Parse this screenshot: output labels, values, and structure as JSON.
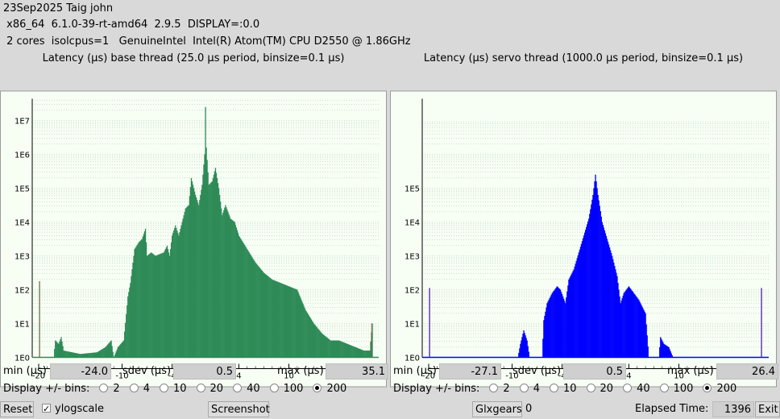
{
  "header": {
    "line1": "23Sep2025 Taig john",
    "line2": " x86_64  6.1.0-39-rt-amd64  2.9.5  DISPLAY=:0.0",
    "line3": " 2 cores  isolcpus=1   GenuineIntel  Intel(R) Atom(TM) CPU D2550 @ 1.86GHz"
  },
  "base": {
    "title": "Latency (µs) base thread (25.0 µs period, binsize=0.1 µs)",
    "min_label": "min (µs)",
    "min": "-24.0",
    "sdev_label": "sdev (µs)",
    "sdev": "0.5",
    "max_label": "max (µs)",
    "max": "35.1",
    "bins_label": "Display +/- bins:",
    "bins": [
      "2",
      "4",
      "10",
      "20",
      "40",
      "100",
      "200"
    ],
    "selected_bin": "200",
    "color": "#2e8b57"
  },
  "servo": {
    "title": "Latency (µs) servo thread (1000.0 µs period, binsize=0.1 µs)",
    "min_label": "min (µs)",
    "min": "-27.1",
    "sdev_label": "sdev (µs)",
    "sdev": "0.5",
    "max_label": "max (µs)",
    "max": "26.4",
    "bins_label": "Display +/- bins:",
    "bins": [
      "2",
      "4",
      "10",
      "20",
      "40",
      "100",
      "200"
    ],
    "selected_bin": "200",
    "color": "#0000ff"
  },
  "bottom": {
    "reset": "Reset",
    "ylog": "ylogscale",
    "ylog_checked": true,
    "screenshot": "Screenshot",
    "glxgears": "Glxgears",
    "glx_count": "0",
    "elapsed_label": "Elapsed Time:",
    "elapsed": "1396",
    "exit": "Exit"
  },
  "chart_data": [
    {
      "type": "bar",
      "title": "Latency (µs) base thread (25.0 µs period, binsize=0.1 µs)",
      "xlim": [
        -20,
        20
      ],
      "x_ticks": [
        "-20",
        "-10",
        "-4",
        "-2",
        "0",
        "2",
        "4",
        "10",
        "20"
      ],
      "ylog": true,
      "y_ticks": [
        "1E0",
        "1E1",
        "1E2",
        "1E3",
        "1E4",
        "1E5",
        "1E6",
        "1E7"
      ],
      "grid": true,
      "color": "#2e8b57",
      "profile_log10": [
        [
          -20,
          0
        ],
        [
          -19.9,
          2.25
        ],
        [
          -19.8,
          0
        ],
        [
          -18.2,
          0
        ],
        [
          -18,
          0.5
        ],
        [
          -17.6,
          0.4
        ],
        [
          -17.3,
          0.6
        ],
        [
          -17,
          0.2
        ],
        [
          -15,
          0.1
        ],
        [
          -13,
          0.15
        ],
        [
          -12,
          0.3
        ],
        [
          -11.3,
          0.5
        ],
        [
          -11,
          0
        ],
        [
          -10.5,
          0.3
        ],
        [
          -9.8,
          0.5
        ],
        [
          -9.3,
          1.8
        ],
        [
          -9,
          2.2
        ],
        [
          -8.5,
          3.2
        ],
        [
          -8.0,
          3.4
        ],
        [
          -7.6,
          3.5
        ],
        [
          -7.2,
          3.8
        ],
        [
          -7,
          3.0
        ],
        [
          -6.5,
          3.1
        ],
        [
          -6,
          3.0
        ],
        [
          -5,
          3.1
        ],
        [
          -4.6,
          3.3
        ],
        [
          -4.3,
          3.0
        ],
        [
          -4,
          3.6
        ],
        [
          -3.6,
          3.9
        ],
        [
          -3.2,
          3.6
        ],
        [
          -2.8,
          4.0
        ],
        [
          -2.4,
          4.4
        ],
        [
          -2.0,
          4.5
        ],
        [
          -1.7,
          5.3
        ],
        [
          -1.2,
          4.8
        ],
        [
          -0.8,
          4.5
        ],
        [
          -0.4,
          5.1
        ],
        [
          -0.1,
          6.0
        ],
        [
          0,
          7.4
        ],
        [
          0.1,
          6.2
        ],
        [
          0.4,
          5.1
        ],
        [
          0.8,
          5.2
        ],
        [
          1.2,
          5.6
        ],
        [
          1.6,
          5.0
        ],
        [
          2.0,
          4.2
        ],
        [
          2.4,
          4.5
        ],
        [
          3.0,
          4.1
        ],
        [
          3.5,
          4.0
        ],
        [
          4.0,
          3.6
        ],
        [
          5,
          3.2
        ],
        [
          6,
          2.8
        ],
        [
          7,
          2.5
        ],
        [
          8,
          2.3
        ],
        [
          9,
          2.2
        ],
        [
          10,
          2.1
        ],
        [
          11,
          2.0
        ],
        [
          11.5,
          1.7
        ],
        [
          12,
          1.4
        ],
        [
          13,
          1.0
        ],
        [
          14,
          0.7
        ],
        [
          15,
          0.5
        ],
        [
          16,
          0.5
        ],
        [
          17,
          0.4
        ],
        [
          18,
          0.3
        ],
        [
          19,
          0.2
        ],
        [
          19.7,
          0.2
        ],
        [
          20,
          1.0
        ]
      ]
    },
    {
      "type": "bar",
      "title": "Latency (µs) servo thread (1000.0 µs period, binsize=0.1 µs)",
      "xlim": [
        -20,
        20
      ],
      "x_ticks": [
        "-20",
        "-10",
        "-4",
        "-2",
        "0",
        "2",
        "4",
        "10",
        "20"
      ],
      "ylog": true,
      "y_ticks": [
        "1E0",
        "1E1",
        "1E2",
        "1E3",
        "1E4",
        "1E5"
      ],
      "grid": true,
      "color": "#0000ff",
      "profile_log10": [
        [
          -20,
          0
        ],
        [
          -19.9,
          2.05
        ],
        [
          -19.8,
          0
        ],
        [
          -9.3,
          0
        ],
        [
          -9,
          0.4
        ],
        [
          -8.6,
          0.8
        ],
        [
          -8.2,
          0.5
        ],
        [
          -7.9,
          0
        ],
        [
          -6.4,
          0
        ],
        [
          -6.2,
          1.1
        ],
        [
          -5.8,
          1.6
        ],
        [
          -5.2,
          1.9
        ],
        [
          -4.6,
          2.1
        ],
        [
          -4.2,
          2.0
        ],
        [
          -3.6,
          1.6
        ],
        [
          -3.2,
          2.3
        ],
        [
          -2.6,
          2.6
        ],
        [
          -2.0,
          3.1
        ],
        [
          -1.4,
          3.6
        ],
        [
          -0.8,
          4.1
        ],
        [
          -0.3,
          4.8
        ],
        [
          0,
          5.4
        ],
        [
          0.3,
          4.8
        ],
        [
          0.8,
          4.0
        ],
        [
          1.4,
          3.5
        ],
        [
          2.0,
          3.0
        ],
        [
          2.6,
          2.4
        ],
        [
          3.0,
          1.6
        ],
        [
          3.4,
          1.9
        ],
        [
          4.0,
          2.1
        ],
        [
          4.6,
          1.9
        ],
        [
          5.2,
          1.7
        ],
        [
          6.0,
          1.3
        ],
        [
          6.4,
          0
        ],
        [
          7.6,
          0
        ],
        [
          7.8,
          0.6
        ],
        [
          8.2,
          0.4
        ],
        [
          8.8,
          0.3
        ],
        [
          9.3,
          0
        ],
        [
          19.8,
          0
        ],
        [
          19.9,
          2.05
        ],
        [
          20,
          0
        ]
      ]
    }
  ]
}
